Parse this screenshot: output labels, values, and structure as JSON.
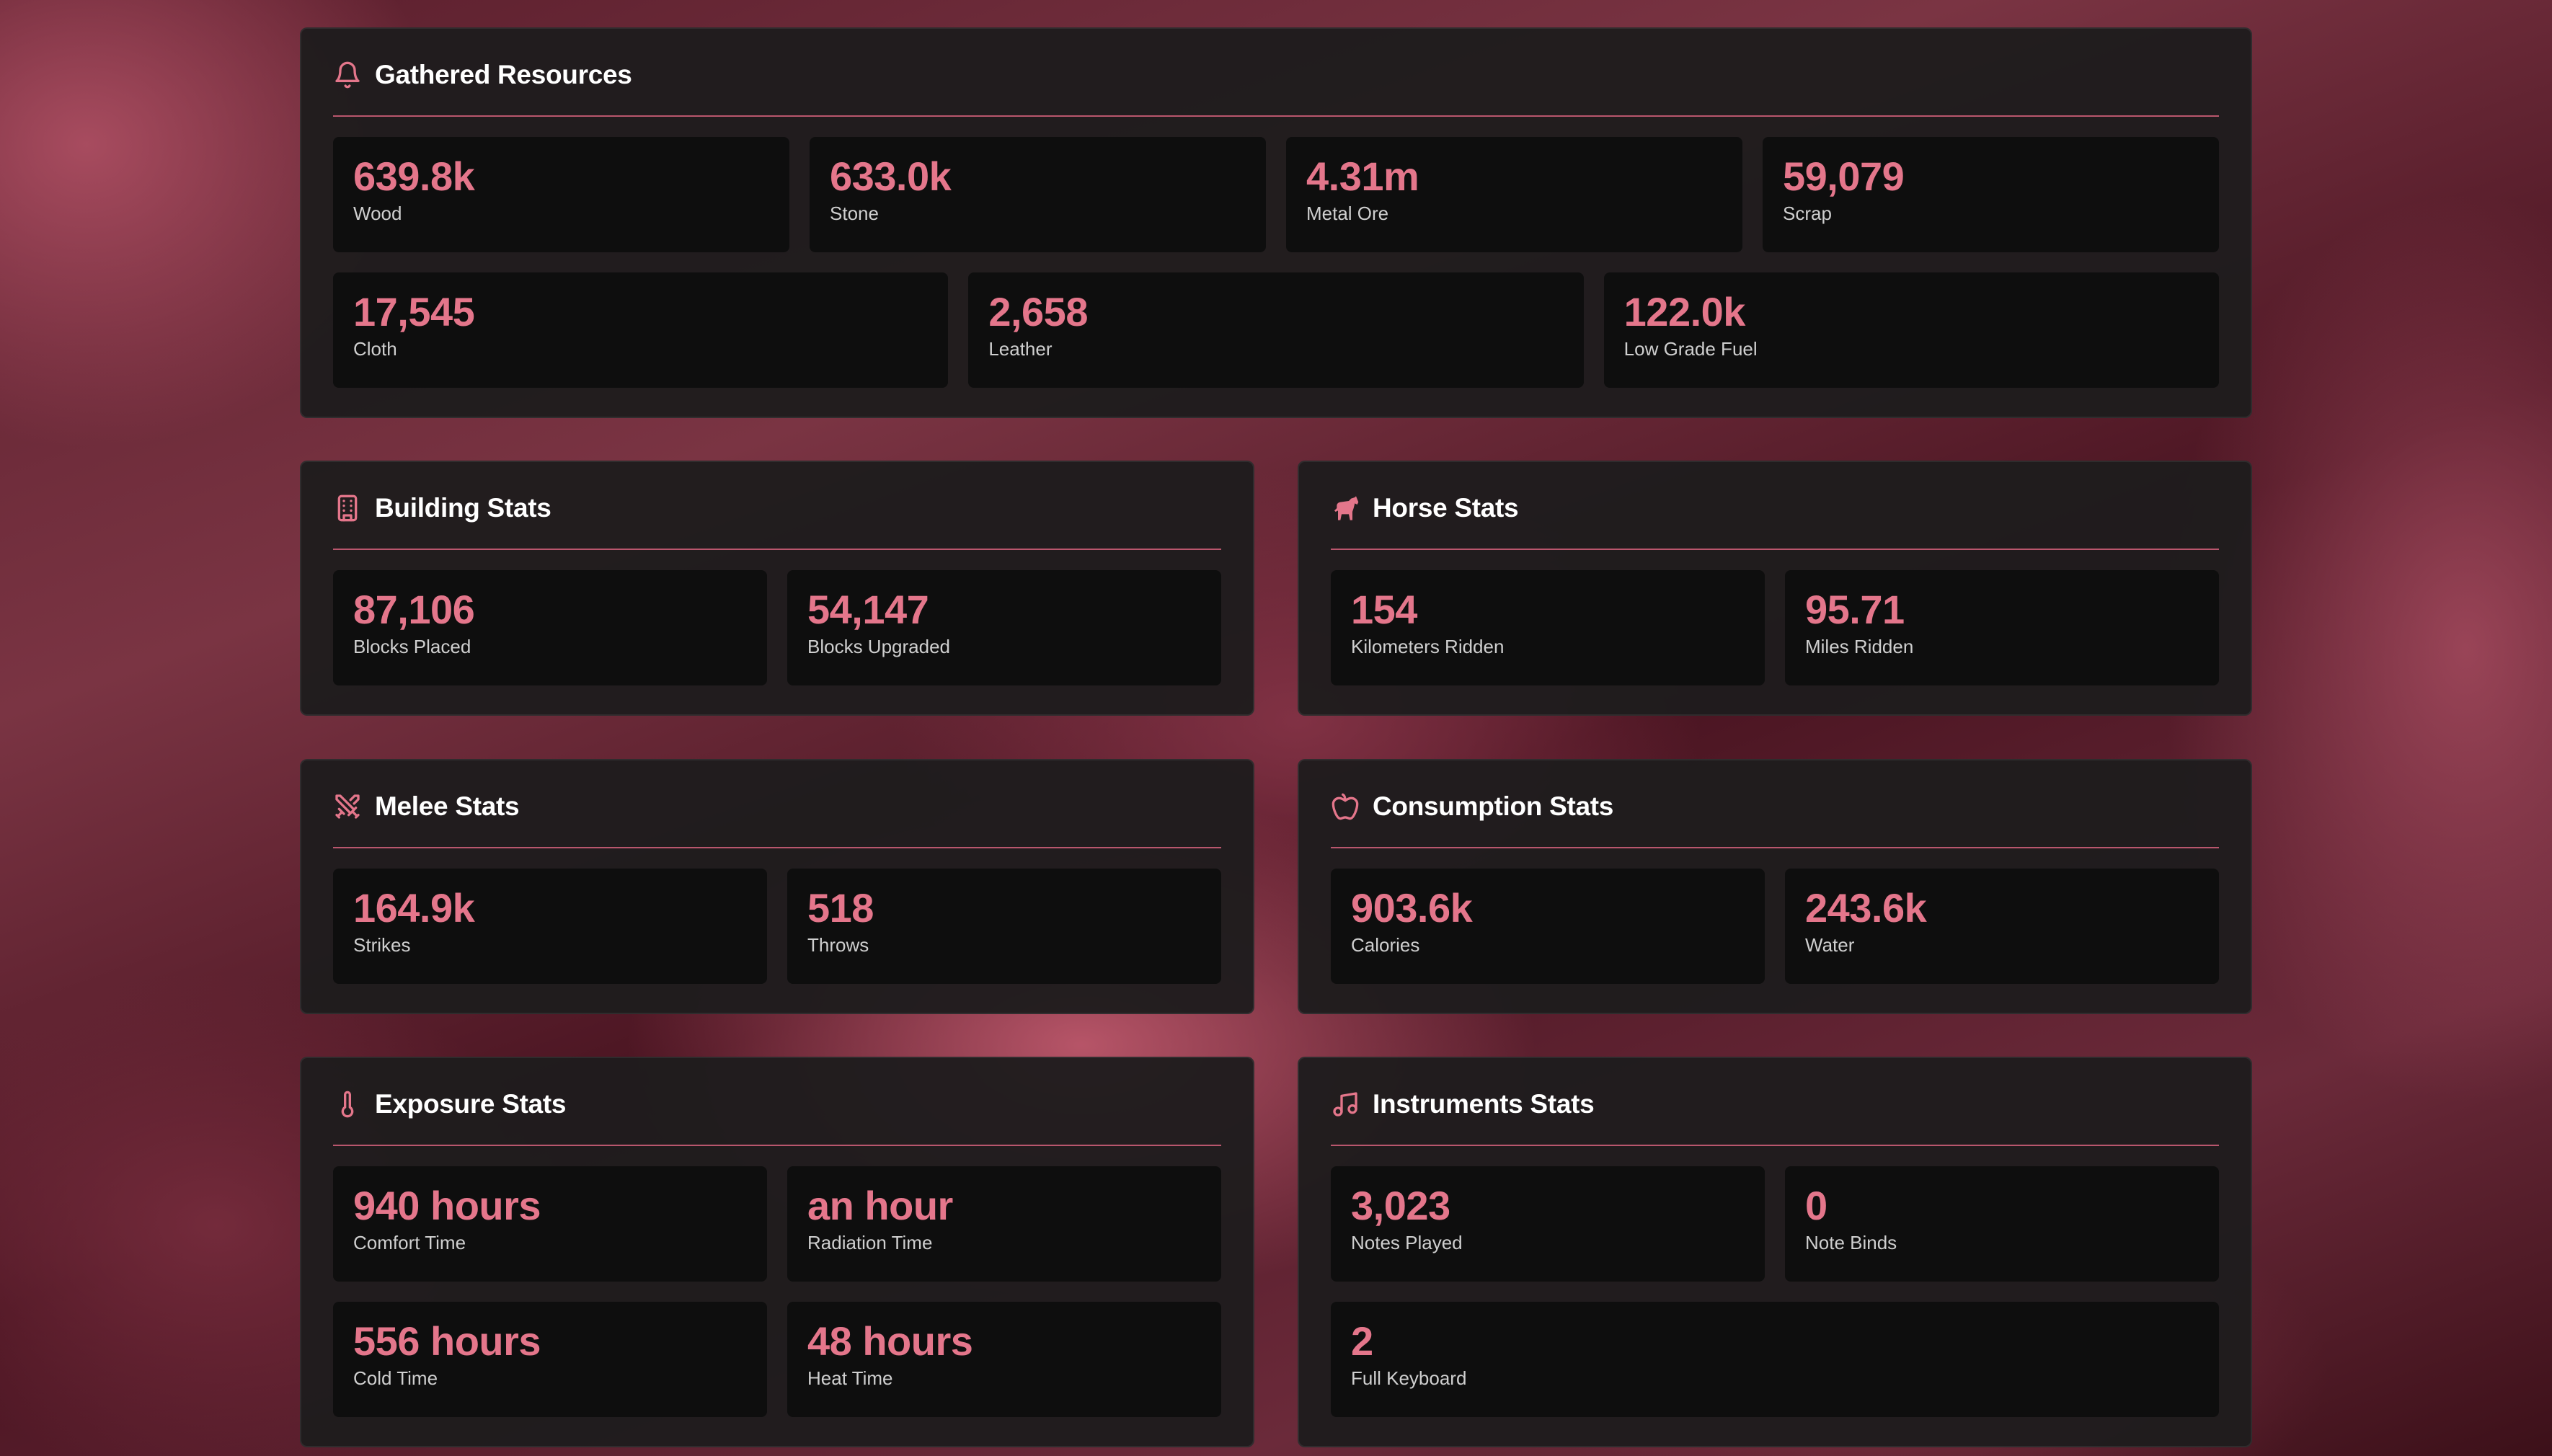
{
  "colors": {
    "accent": "#e4768b",
    "divider": "#b9566d",
    "card": "#1e1c1d",
    "tile": "#0e0e0e"
  },
  "gathered": {
    "title": "Gathered Resources",
    "icon": "bell-icon",
    "stats": [
      {
        "value": "639.8k",
        "label": "Wood"
      },
      {
        "value": "633.0k",
        "label": "Stone"
      },
      {
        "value": "4.31m",
        "label": "Metal Ore"
      },
      {
        "value": "59,079",
        "label": "Scrap"
      },
      {
        "value": "17,545",
        "label": "Cloth"
      },
      {
        "value": "2,658",
        "label": "Leather"
      },
      {
        "value": "122.0k",
        "label": "Low Grade Fuel"
      }
    ]
  },
  "building": {
    "title": "Building Stats",
    "icon": "building-icon",
    "stats": [
      {
        "value": "87,106",
        "label": "Blocks Placed"
      },
      {
        "value": "54,147",
        "label": "Blocks Upgraded"
      }
    ]
  },
  "horse": {
    "title": "Horse Stats",
    "icon": "horse-icon",
    "stats": [
      {
        "value": "154",
        "label": "Kilometers Ridden"
      },
      {
        "value": "95.71",
        "label": "Miles Ridden"
      }
    ]
  },
  "melee": {
    "title": "Melee Stats",
    "icon": "crossed-swords-icon",
    "stats": [
      {
        "value": "164.9k",
        "label": "Strikes"
      },
      {
        "value": "518",
        "label": "Throws"
      }
    ]
  },
  "consumption": {
    "title": "Consumption Stats",
    "icon": "apple-icon",
    "stats": [
      {
        "value": "903.6k",
        "label": "Calories"
      },
      {
        "value": "243.6k",
        "label": "Water"
      }
    ]
  },
  "exposure": {
    "title": "Exposure Stats",
    "icon": "thermometer-icon",
    "stats": [
      {
        "value": "940 hours",
        "label": "Comfort Time"
      },
      {
        "value": "an hour",
        "label": "Radiation Time"
      },
      {
        "value": "556 hours",
        "label": "Cold Time"
      },
      {
        "value": "48 hours",
        "label": "Heat Time"
      }
    ]
  },
  "instruments": {
    "title": "Instruments Stats",
    "icon": "music-note-icon",
    "stats": [
      {
        "value": "3,023",
        "label": "Notes Played"
      },
      {
        "value": "0",
        "label": "Note Binds"
      },
      {
        "value": "2",
        "label": "Full Keyboard"
      }
    ]
  }
}
